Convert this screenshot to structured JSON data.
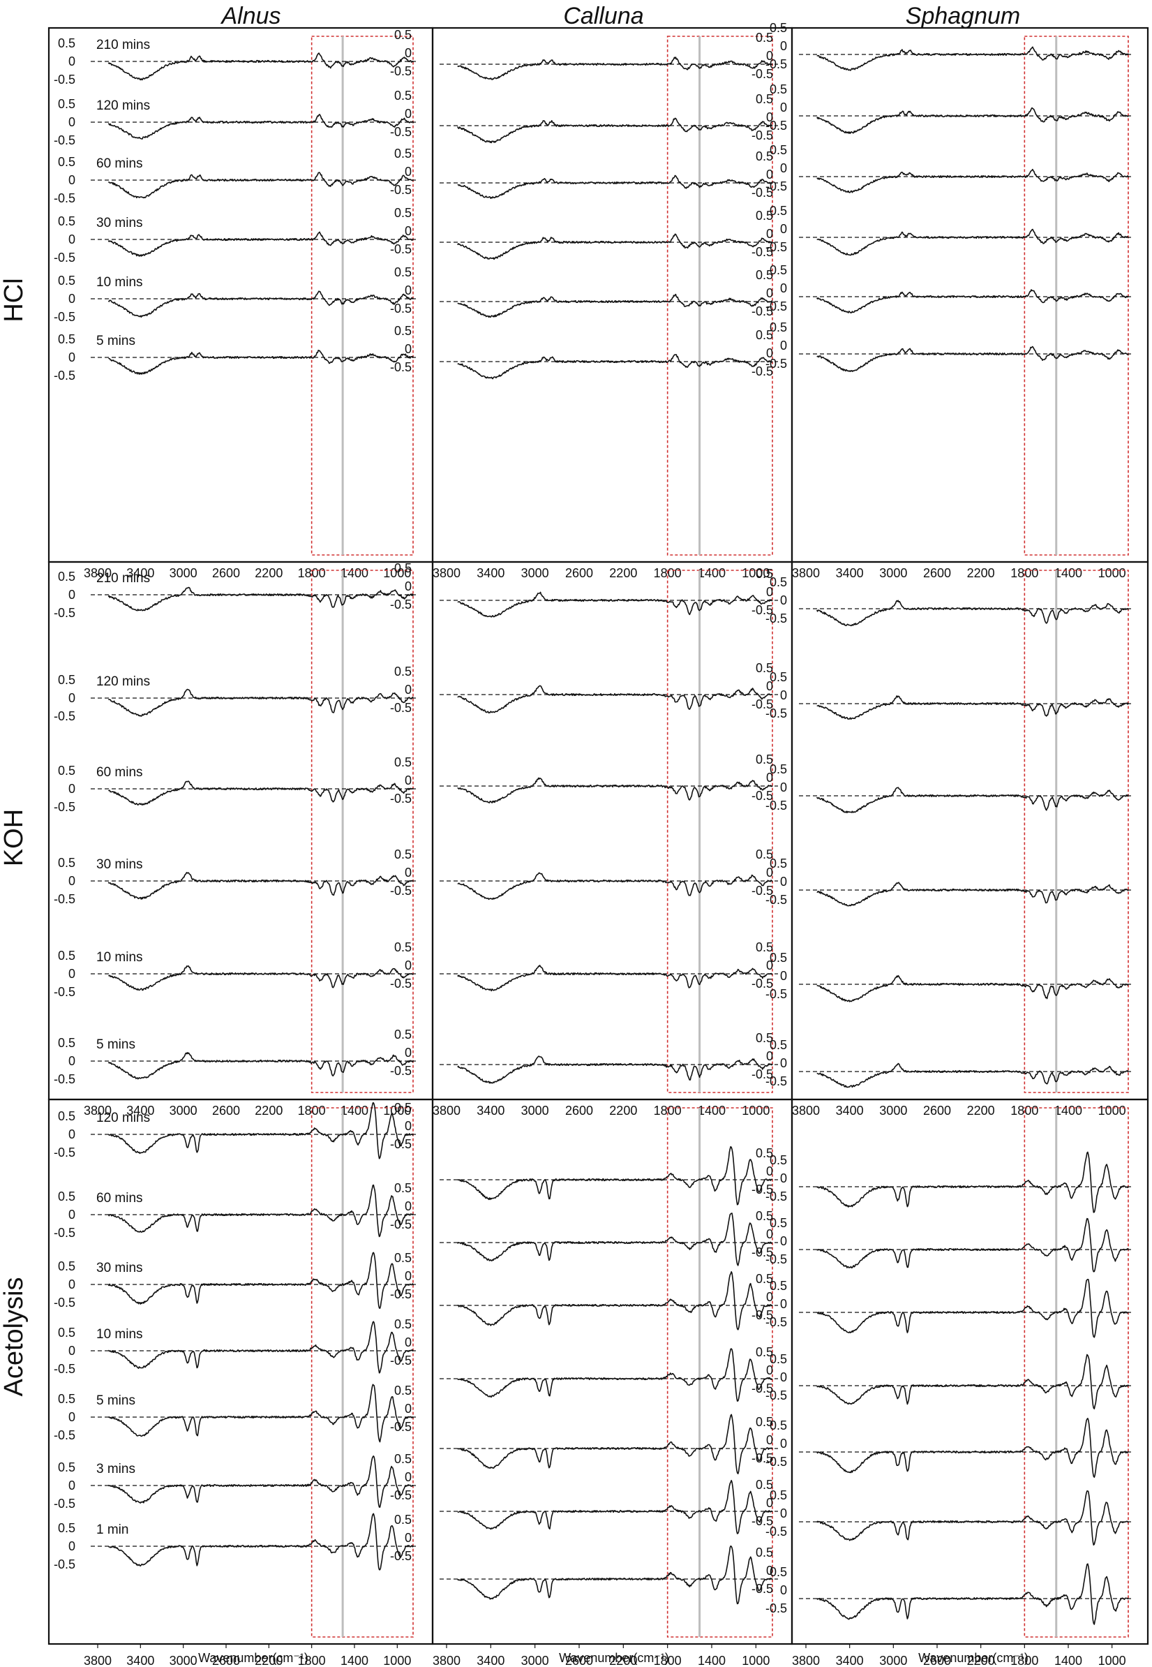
{
  "chart_data": {
    "type": "line",
    "species": [
      "Alnus",
      "Calluna",
      "Sphagnum"
    ],
    "treatments": [
      {
        "name": "HCl",
        "label": "HCl",
        "times": [
          "210 mins",
          "120 mins",
          "60 mins",
          "30 mins",
          "10 mins",
          "5 mins"
        ]
      },
      {
        "name": "KOH",
        "label": "KOH",
        "times": [
          "210 mins",
          "120 mins",
          "60 mins",
          "30 mins",
          "10 mins",
          "5 mins"
        ]
      },
      {
        "name": "Acetolysis",
        "label": "Acetolysis",
        "times": [
          "120 mins",
          "60 mins",
          "30 mins",
          "10 mins",
          "5 mins",
          "3 mins",
          "1 min"
        ]
      }
    ],
    "x_axis": {
      "label": "Wavenumber(cm⁻¹)",
      "ticks": [
        "3800",
        "3400",
        "3000",
        "2600",
        "2200",
        "1800",
        "1400",
        "1000"
      ],
      "reversed": true,
      "xlim": [
        3800,
        800
      ]
    },
    "y_ticks": [
      "0.5",
      "0",
      "-0.5"
    ],
    "ylim_per_trace": [
      -0.5,
      0.5
    ],
    "highlight_region_cm": [
      1800,
      800
    ],
    "highlight_line_cm": 1510,
    "feature_sets": {
      "HCl": [
        [
          3400,
          -0.45,
          200
        ],
        [
          2920,
          0.12,
          25
        ],
        [
          2850,
          0.12,
          25
        ],
        [
          1730,
          0.2,
          30
        ],
        [
          1630,
          -0.15,
          40
        ],
        [
          1510,
          -0.12,
          25
        ],
        [
          1420,
          -0.08,
          40
        ],
        [
          1240,
          0.08,
          50
        ],
        [
          1030,
          -0.12,
          40
        ],
        [
          940,
          0.1,
          30
        ]
      ],
      "KOH": [
        [
          3400,
          -0.45,
          200
        ],
        [
          2960,
          0.22,
          40
        ],
        [
          1800,
          -0.05,
          30
        ],
        [
          1720,
          -0.2,
          30
        ],
        [
          1600,
          -0.38,
          30
        ],
        [
          1510,
          -0.3,
          25
        ],
        [
          1420,
          -0.12,
          30
        ],
        [
          1240,
          -0.08,
          30
        ],
        [
          1160,
          0.1,
          30
        ],
        [
          1030,
          0.14,
          30
        ],
        [
          940,
          -0.1,
          30
        ]
      ],
      "ACE": [
        [
          3400,
          -0.5,
          150
        ],
        [
          2960,
          -0.35,
          25
        ],
        [
          2870,
          -0.5,
          20
        ],
        [
          1770,
          0.15,
          40
        ],
        [
          1600,
          -0.18,
          40
        ],
        [
          1420,
          0.1,
          40
        ],
        [
          1370,
          -0.3,
          30
        ],
        [
          1220,
          0.9,
          40
        ],
        [
          1170,
          -0.8,
          30
        ],
        [
          1050,
          0.55,
          30
        ],
        [
          970,
          -0.3,
          30
        ]
      ]
    }
  }
}
